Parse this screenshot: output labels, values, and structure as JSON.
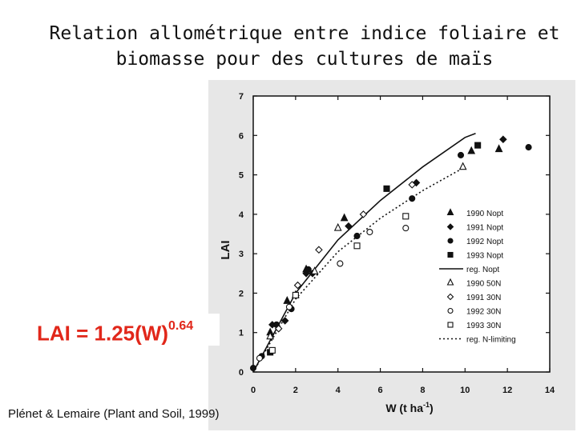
{
  "slide": {
    "title_line1": "Relation allométrique entre indice foliaire et",
    "title_line2": "biomasse pour des cultures de maïs",
    "formula_main": "LAI = 1.25(W)",
    "formula_exponent": "0.64",
    "citation": "Plénet & Lemaire (Plant and Soil, 1999)",
    "accent_color": "#e1271a"
  },
  "chart_data": {
    "type": "scatter",
    "xlabel": "W (t ha",
    "xlabel_sup": "-1",
    "xlabel_close": ")",
    "ylabel": "LAI",
    "xlim": [
      0,
      14
    ],
    "ylim": [
      0,
      7
    ],
    "xticks": [
      "0",
      "2",
      "4",
      "6",
      "8",
      "10",
      "12",
      "14"
    ],
    "yticks": [
      "0",
      "1",
      "2",
      "3",
      "4",
      "5",
      "6",
      "7"
    ],
    "grid": false,
    "legend_position": "right",
    "series": [
      {
        "name": "1990 Nopt",
        "marker": "triangle",
        "filled": true,
        "points": [
          [
            0.8,
            1.0
          ],
          [
            1.6,
            1.8
          ],
          [
            2.5,
            2.6
          ],
          [
            4.3,
            3.9
          ],
          [
            10.3,
            5.6
          ],
          [
            11.6,
            5.65
          ]
        ]
      },
      {
        "name": "1991 Nopt",
        "marker": "diamond",
        "filled": true,
        "points": [
          [
            0.9,
            1.2
          ],
          [
            1.5,
            1.3
          ],
          [
            2.5,
            2.5
          ],
          [
            2.8,
            2.5
          ],
          [
            4.5,
            3.7
          ],
          [
            7.7,
            4.8
          ],
          [
            11.8,
            5.9
          ]
        ]
      },
      {
        "name": "1992 Nopt",
        "marker": "circle",
        "filled": true,
        "points": [
          [
            0.0,
            0.1
          ],
          [
            0.4,
            0.4
          ],
          [
            1.1,
            1.2
          ],
          [
            1.8,
            1.6
          ],
          [
            2.6,
            2.6
          ],
          [
            4.9,
            3.45
          ],
          [
            7.5,
            4.4
          ],
          [
            9.8,
            5.5
          ],
          [
            13.0,
            5.7
          ]
        ]
      },
      {
        "name": "1993 Nopt",
        "marker": "square",
        "filled": true,
        "points": [
          [
            0.8,
            0.5
          ],
          [
            6.3,
            4.65
          ],
          [
            10.6,
            5.75
          ]
        ]
      },
      {
        "name": "reg. Nopt",
        "line": "solid",
        "points": [
          [
            0,
            0
          ],
          [
            2,
            2.0
          ],
          [
            4,
            3.35
          ],
          [
            6,
            4.35
          ],
          [
            8,
            5.2
          ],
          [
            10,
            5.95
          ],
          [
            10.5,
            6.05
          ]
        ]
      },
      {
        "name": "1990 50N",
        "marker": "triangle",
        "filled": false,
        "points": [
          [
            0.8,
            0.9
          ],
          [
            2.0,
            1.95
          ],
          [
            2.9,
            2.55
          ],
          [
            4.0,
            3.65
          ],
          [
            9.9,
            5.2
          ]
        ]
      },
      {
        "name": "1991 30N",
        "marker": "diamond",
        "filled": false,
        "points": [
          [
            1.2,
            1.1
          ],
          [
            2.1,
            2.2
          ],
          [
            3.1,
            3.1
          ],
          [
            5.2,
            4.0
          ],
          [
            7.5,
            4.75
          ]
        ]
      },
      {
        "name": "1992 30N",
        "marker": "circle",
        "filled": false,
        "points": [
          [
            0.3,
            0.35
          ],
          [
            1.7,
            1.65
          ],
          [
            4.1,
            2.75
          ],
          [
            5.5,
            3.55
          ],
          [
            7.2,
            3.65
          ]
        ]
      },
      {
        "name": "1993 30N",
        "marker": "square",
        "filled": false,
        "points": [
          [
            0.9,
            0.55
          ],
          [
            2.0,
            1.95
          ],
          [
            4.9,
            3.2
          ],
          [
            7.2,
            3.95
          ]
        ]
      },
      {
        "name": "reg. N-limiting",
        "line": "dotted",
        "points": [
          [
            0,
            0
          ],
          [
            2,
            1.85
          ],
          [
            4,
            3.05
          ],
          [
            6,
            3.9
          ],
          [
            8,
            4.6
          ],
          [
            10,
            5.2
          ]
        ]
      }
    ]
  }
}
